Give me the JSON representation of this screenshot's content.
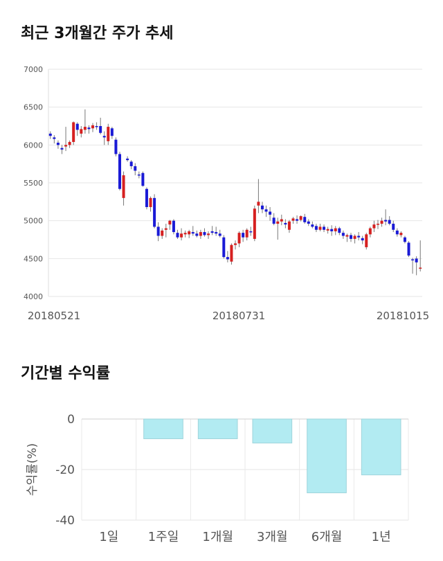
{
  "sections": {
    "price_title": "최근 3개월간 주가 추세",
    "returns_title": "기간별 수익률"
  },
  "chart_data": [
    {
      "type": "candlestick",
      "title": "최근 3개월간 주가 추세",
      "ylim": [
        4000,
        7000
      ],
      "y_ticks": [
        4000,
        4500,
        5000,
        5500,
        6000,
        6500,
        7000
      ],
      "x_tick_labels": [
        "20180521",
        "20180731",
        "20181015"
      ],
      "grid": true,
      "colors": {
        "up": "#d62020",
        "down": "#1a1ad6"
      },
      "ohlc": [
        [
          6150,
          6180,
          6080,
          6120
        ],
        [
          6100,
          6130,
          6020,
          6080
        ],
        [
          6030,
          6060,
          5950,
          6000
        ],
        [
          5960,
          6000,
          5880,
          5940
        ],
        [
          5980,
          6240,
          5920,
          6000
        ],
        [
          6000,
          6060,
          5960,
          6040
        ],
        [
          6040,
          6310,
          6000,
          6300
        ],
        [
          6280,
          6300,
          6120,
          6200
        ],
        [
          6150,
          6250,
          6100,
          6210
        ],
        [
          6200,
          6470,
          6150,
          6240
        ],
        [
          6230,
          6260,
          6150,
          6210
        ],
        [
          6220,
          6290,
          6170,
          6260
        ],
        [
          6250,
          6300,
          6200,
          6240
        ],
        [
          6250,
          6360,
          6140,
          6160
        ],
        [
          6120,
          6180,
          6000,
          6100
        ],
        [
          6050,
          6280,
          6000,
          6240
        ],
        [
          6220,
          6240,
          6080,
          6120
        ],
        [
          6070,
          6100,
          5850,
          5880
        ],
        [
          5880,
          5910,
          5400,
          5420
        ],
        [
          5300,
          5650,
          5200,
          5600
        ],
        [
          5820,
          5850,
          5780,
          5800
        ],
        [
          5780,
          5800,
          5680,
          5720
        ],
        [
          5720,
          5760,
          5600,
          5660
        ],
        [
          5610,
          5650,
          5560,
          5600
        ],
        [
          5630,
          5650,
          5450,
          5460
        ],
        [
          5420,
          5440,
          5150,
          5180
        ],
        [
          5180,
          5320,
          5120,
          5300
        ],
        [
          5300,
          5350,
          4900,
          4920
        ],
        [
          4920,
          4980,
          4730,
          4800
        ],
        [
          4800,
          4900,
          4760,
          4870
        ],
        [
          4880,
          4960,
          4780,
          4900
        ],
        [
          4950,
          5010,
          4880,
          5000
        ],
        [
          5000,
          5020,
          4820,
          4850
        ],
        [
          4840,
          4880,
          4760,
          4780
        ],
        [
          4780,
          4900,
          4740,
          4830
        ],
        [
          4820,
          4870,
          4780,
          4840
        ],
        [
          4820,
          4880,
          4770,
          4860
        ],
        [
          4850,
          4930,
          4800,
          4830
        ],
        [
          4830,
          4870,
          4780,
          4800
        ],
        [
          4800,
          4880,
          4760,
          4850
        ],
        [
          4850,
          4900,
          4790,
          4810
        ],
        [
          4810,
          4860,
          4760,
          4830
        ],
        [
          4860,
          4930,
          4810,
          4840
        ],
        [
          4850,
          4920,
          4800,
          4830
        ],
        [
          4830,
          4880,
          4780,
          4800
        ],
        [
          4780,
          4810,
          4500,
          4520
        ],
        [
          4520,
          4600,
          4450,
          4490
        ],
        [
          4460,
          4700,
          4420,
          4680
        ],
        [
          4680,
          4740,
          4620,
          4700
        ],
        [
          4700,
          4860,
          4650,
          4840
        ],
        [
          4840,
          4880,
          4720,
          4780
        ],
        [
          4780,
          4900,
          4740,
          4880
        ],
        [
          4860,
          4920,
          4800,
          4850
        ],
        [
          4760,
          5200,
          4730,
          5160
        ],
        [
          5200,
          5550,
          5100,
          5250
        ],
        [
          5200,
          5250,
          5100,
          5150
        ],
        [
          5150,
          5200,
          5050,
          5120
        ],
        [
          5120,
          5180,
          5000,
          5080
        ],
        [
          5040,
          5100,
          4940,
          4960
        ],
        [
          4960,
          5040,
          4750,
          4990
        ],
        [
          4990,
          5080,
          4940,
          5020
        ],
        [
          4970,
          5020,
          4900,
          4950
        ],
        [
          4880,
          5010,
          4840,
          4990
        ],
        [
          5000,
          5050,
          4960,
          5030
        ],
        [
          5020,
          5070,
          4960,
          5000
        ],
        [
          5010,
          5070,
          4990,
          5060
        ],
        [
          5050,
          5090,
          4960,
          4980
        ],
        [
          4990,
          5020,
          4930,
          4960
        ],
        [
          4950,
          4990,
          4900,
          4920
        ],
        [
          4930,
          4960,
          4850,
          4880
        ],
        [
          4880,
          4960,
          4860,
          4920
        ],
        [
          4920,
          4950,
          4850,
          4880
        ],
        [
          4870,
          4920,
          4830,
          4890
        ],
        [
          4890,
          4940,
          4800,
          4860
        ],
        [
          4860,
          4930,
          4810,
          4900
        ],
        [
          4900,
          4920,
          4810,
          4840
        ],
        [
          4840,
          4870,
          4760,
          4800
        ],
        [
          4790,
          4830,
          4720,
          4810
        ],
        [
          4810,
          4840,
          4720,
          4760
        ],
        [
          4760,
          4820,
          4700,
          4800
        ],
        [
          4800,
          4850,
          4740,
          4780
        ],
        [
          4770,
          4800,
          4690,
          4740
        ],
        [
          4650,
          4840,
          4620,
          4820
        ],
        [
          4820,
          4920,
          4780,
          4900
        ],
        [
          4900,
          5000,
          4850,
          4950
        ],
        [
          4950,
          5010,
          4890,
          4960
        ],
        [
          4960,
          5040,
          4920,
          5000
        ],
        [
          5010,
          5150,
          4940,
          4990
        ],
        [
          5010,
          5060,
          4940,
          4960
        ],
        [
          4960,
          5000,
          4850,
          4880
        ],
        [
          4870,
          4900,
          4790,
          4820
        ],
        [
          4810,
          4860,
          4780,
          4840
        ],
        [
          4780,
          4800,
          4700,
          4720
        ],
        [
          4710,
          4730,
          4520,
          4540
        ],
        [
          4490,
          4510,
          4300,
          4480
        ],
        [
          4500,
          4530,
          4280,
          4450
        ],
        [
          4380,
          4740,
          4330,
          4380
        ]
      ]
    },
    {
      "type": "bar",
      "title": "기간별 수익률",
      "categories": [
        "1일",
        "1주일",
        "1개월",
        "3개월",
        "6개월",
        "1년"
      ],
      "values": [
        0,
        -7.8,
        -7.8,
        -9.5,
        -29.2,
        -22.1
      ],
      "ylabel": "수익률(%)",
      "ylim": [
        -40,
        0
      ],
      "y_ticks": [
        0,
        -20,
        -40
      ],
      "grid": true,
      "colors": {
        "bar_fill": "#b2ebf2",
        "bar_stroke": "#9fd4db"
      }
    }
  ]
}
